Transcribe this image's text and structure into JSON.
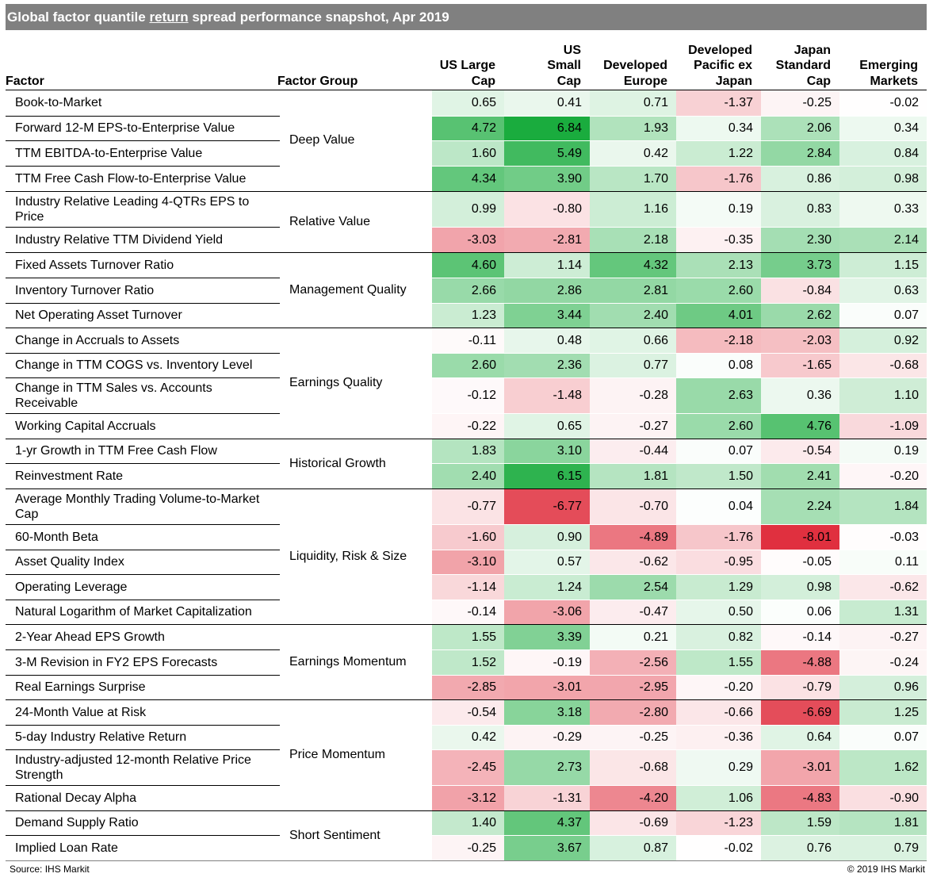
{
  "title": {
    "prefix": "Global factor quantile ",
    "underlined": "return",
    "suffix": " spread performance snapshot, Apr 2019"
  },
  "header": {
    "factor": "Factor",
    "group": "Factor Group"
  },
  "source": "Source: IHS Markit",
  "copyright": "© 2019 IHS Markit",
  "chart_data": {
    "type": "table",
    "columns": [
      {
        "label": "US Large Cap",
        "lines": [
          "US Large",
          "Cap"
        ]
      },
      {
        "label": "US Small Cap",
        "lines": [
          "US",
          "Small",
          "Cap"
        ]
      },
      {
        "label": "Developed Europe",
        "lines": [
          "Developed",
          "Europe"
        ]
      },
      {
        "label": "Developed Pacific ex Japan",
        "lines": [
          "Developed",
          "Pacific ex",
          "Japan"
        ]
      },
      {
        "label": "Japan Standard Cap",
        "lines": [
          "Japan",
          "Standard",
          "Cap"
        ]
      },
      {
        "label": "Emerging Markets",
        "lines": [
          "Emerging",
          "Markets"
        ]
      }
    ],
    "groups": [
      {
        "name": "Deep Value",
        "start": 0,
        "count": 4
      },
      {
        "name": "Relative Value",
        "start": 4,
        "count": 2
      },
      {
        "name": "Management Quality",
        "start": 6,
        "count": 3
      },
      {
        "name": "Earnings Quality",
        "start": 9,
        "count": 4
      },
      {
        "name": "Historical Growth",
        "start": 13,
        "count": 2
      },
      {
        "name": "Liquidity, Risk & Size",
        "start": 15,
        "count": 5
      },
      {
        "name": "Earnings Momentum",
        "start": 20,
        "count": 3
      },
      {
        "name": "Price Momentum",
        "start": 23,
        "count": 4
      },
      {
        "name": "Short Sentiment",
        "start": 27,
        "count": 2
      }
    ],
    "rows": [
      {
        "factor": "Book-to-Market",
        "values": [
          "0.65",
          "0.41",
          "0.71",
          "-1.37",
          "-0.25",
          "-0.02"
        ]
      },
      {
        "factor": "Forward 12-M EPS-to-Enterprise Value",
        "values": [
          "4.72",
          "6.84",
          "1.93",
          "0.34",
          "2.06",
          "0.34"
        ]
      },
      {
        "factor": "TTM EBITDA-to-Enterprise Value",
        "values": [
          "1.60",
          "5.49",
          "0.42",
          "1.22",
          "2.84",
          "0.84"
        ]
      },
      {
        "factor": "TTM Free Cash Flow-to-Enterprise Value",
        "values": [
          "4.34",
          "3.90",
          "1.70",
          "-1.76",
          "0.86",
          "0.98"
        ]
      },
      {
        "factor": "Industry Relative Leading 4-QTRs EPS to Price",
        "values": [
          "0.99",
          "-0.80",
          "1.16",
          "0.19",
          "0.83",
          "0.33"
        ]
      },
      {
        "factor": "Industry Relative TTM Dividend Yield",
        "values": [
          "-3.03",
          "-2.81",
          "2.18",
          "-0.35",
          "2.30",
          "2.14"
        ]
      },
      {
        "factor": "Fixed Assets Turnover Ratio",
        "values": [
          "4.60",
          "1.14",
          "4.32",
          "2.13",
          "3.73",
          "1.15"
        ]
      },
      {
        "factor": "Inventory Turnover Ratio",
        "values": [
          "2.66",
          "2.86",
          "2.81",
          "2.60",
          "-0.84",
          "0.63"
        ]
      },
      {
        "factor": "Net Operating Asset Turnover",
        "values": [
          "1.23",
          "3.44",
          "2.40",
          "4.01",
          "2.62",
          "0.07"
        ]
      },
      {
        "factor": "Change in Accruals to Assets",
        "values": [
          "-0.11",
          "0.48",
          "0.66",
          "-2.18",
          "-2.03",
          "0.92"
        ]
      },
      {
        "factor": "Change in TTM COGS vs. Inventory Level",
        "values": [
          "2.60",
          "2.36",
          "0.77",
          "0.08",
          "-1.65",
          "-0.68"
        ]
      },
      {
        "factor": "Change in TTM Sales vs. Accounts Receivable",
        "values": [
          "-0.12",
          "-1.48",
          "-0.28",
          "2.63",
          "0.36",
          "1.10"
        ]
      },
      {
        "factor": "Working Capital Accruals",
        "values": [
          "-0.22",
          "0.65",
          "-0.27",
          "2.60",
          "4.76",
          "-1.09"
        ]
      },
      {
        "factor": "1-yr Growth in TTM Free Cash Flow",
        "values": [
          "1.83",
          "3.10",
          "-0.44",
          "0.07",
          "-0.54",
          "0.19"
        ]
      },
      {
        "factor": "Reinvestment Rate",
        "values": [
          "2.40",
          "6.15",
          "1.81",
          "1.50",
          "2.41",
          "-0.20"
        ]
      },
      {
        "factor": "Average Monthly Trading Volume-to-Market Cap",
        "values": [
          "-0.77",
          "-6.77",
          "-0.70",
          "0.04",
          "2.24",
          "1.84"
        ]
      },
      {
        "factor": "60-Month Beta",
        "values": [
          "-1.60",
          "0.90",
          "-4.89",
          "-1.76",
          "-8.01",
          "-0.03"
        ]
      },
      {
        "factor": "Asset Quality Index",
        "values": [
          "-3.10",
          "0.57",
          "-0.62",
          "-0.95",
          "-0.05",
          "0.11"
        ]
      },
      {
        "factor": "Operating Leverage",
        "values": [
          "-1.14",
          "1.24",
          "2.54",
          "1.29",
          "0.98",
          "-0.62"
        ]
      },
      {
        "factor": "Natural Logarithm of Market Capitalization",
        "values": [
          "-0.14",
          "-3.06",
          "-0.47",
          "0.50",
          "0.06",
          "1.31"
        ]
      },
      {
        "factor": "2-Year Ahead EPS Growth",
        "values": [
          "1.55",
          "3.39",
          "0.21",
          "0.82",
          "-0.14",
          "-0.27"
        ]
      },
      {
        "factor": "3-M Revision in FY2 EPS Forecasts",
        "values": [
          "1.52",
          "-0.19",
          "-2.56",
          "1.55",
          "-4.88",
          "-0.24"
        ]
      },
      {
        "factor": "Real Earnings Surprise",
        "values": [
          "-2.85",
          "-3.01",
          "-2.95",
          "-0.20",
          "-0.79",
          "0.96"
        ]
      },
      {
        "factor": "24-Month Value at Risk",
        "values": [
          "-0.54",
          "3.18",
          "-2.80",
          "-0.66",
          "-6.69",
          "1.25"
        ]
      },
      {
        "factor": "5-day Industry Relative Return",
        "values": [
          "0.42",
          "-0.29",
          "-0.25",
          "-0.36",
          "0.64",
          "0.07"
        ]
      },
      {
        "factor": "Industry-adjusted 12-month Relative Price Strength",
        "values": [
          "-2.45",
          "2.73",
          "-0.68",
          "0.29",
          "-3.01",
          "1.62"
        ]
      },
      {
        "factor": "Rational Decay Alpha",
        "values": [
          "-3.12",
          "-1.31",
          "-4.20",
          "1.06",
          "-4.83",
          "-0.90"
        ]
      },
      {
        "factor": "Demand Supply Ratio",
        "values": [
          "1.40",
          "4.37",
          "-0.69",
          "-1.23",
          "1.59",
          "1.81"
        ]
      },
      {
        "factor": "Implied Loan Rate",
        "values": [
          "-0.25",
          "3.67",
          "0.87",
          "-0.02",
          "0.76",
          "0.79"
        ]
      }
    ],
    "color_scale": {
      "positive": "#1aac3e",
      "negative": "#e0303f",
      "neutral": "#ffffff"
    }
  }
}
